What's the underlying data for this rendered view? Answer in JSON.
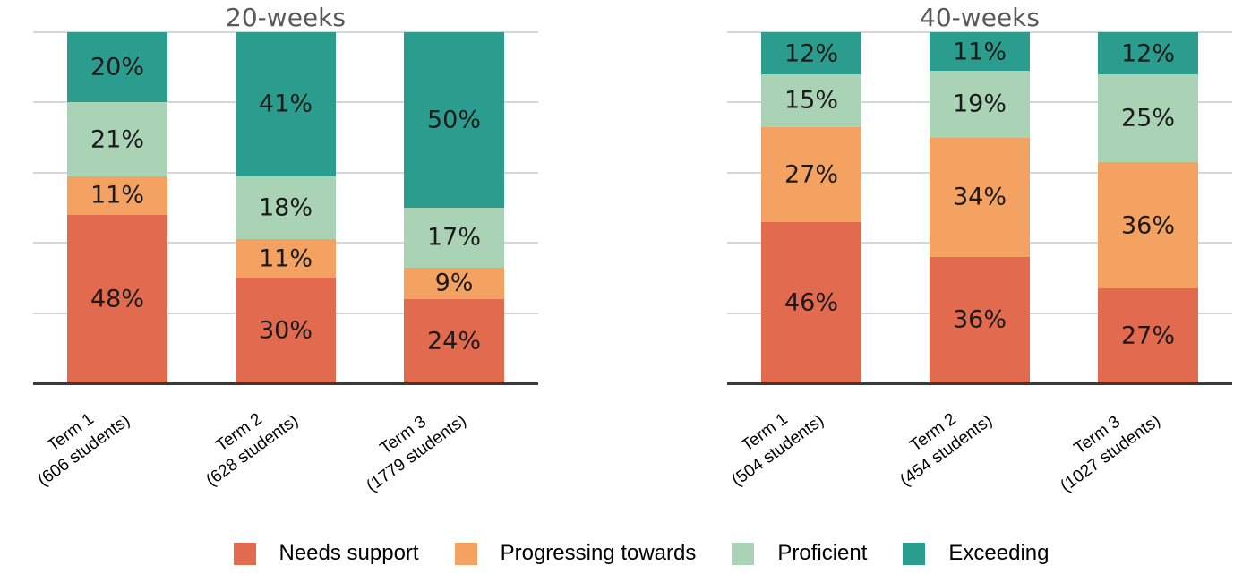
{
  "colors": {
    "needs_support": "#E26A4F",
    "progressing_towards": "#F3A262",
    "proficient": "#AAD3B5",
    "exceeding": "#2A9D8F",
    "gridline": "#D6D6D6",
    "axis": "#3A3A3A",
    "title_text": "#595959",
    "value_text": "#1A1A1A",
    "background": "#FFFFFF"
  },
  "legend": {
    "items": [
      {
        "label": "Needs support",
        "color_key": "needs_support"
      },
      {
        "label": "Progressing towards",
        "color_key": "progressing_towards"
      },
      {
        "label": "Proficient",
        "color_key": "proficient"
      },
      {
        "label": "Exceeding",
        "color_key": "exceeding"
      }
    ]
  },
  "chart_data": [
    {
      "type": "bar",
      "stacked": true,
      "title": "20-weeks",
      "value_suffix": "%",
      "ylim": [
        0,
        100
      ],
      "gridline_step": 20,
      "grid": true,
      "legend_position": "bottom",
      "categories": [
        [
          "Term 1",
          "(606 students)"
        ],
        [
          "Term 2",
          "(628 students)"
        ],
        [
          "Term 3",
          "(1779 students)"
        ]
      ],
      "series": [
        {
          "name": "Needs support",
          "color_key": "needs_support",
          "values": [
            48,
            30,
            24
          ]
        },
        {
          "name": "Progressing towards",
          "color_key": "progressing_towards",
          "values": [
            11,
            11,
            9
          ]
        },
        {
          "name": "Proficient",
          "color_key": "proficient",
          "values": [
            21,
            18,
            17
          ]
        },
        {
          "name": "Exceeding",
          "color_key": "exceeding",
          "values": [
            20,
            41,
            50
          ]
        }
      ]
    },
    {
      "type": "bar",
      "stacked": true,
      "title": "40-weeks",
      "value_suffix": "%",
      "ylim": [
        0,
        100
      ],
      "gridline_step": 20,
      "grid": true,
      "legend_position": "bottom",
      "categories": [
        [
          "Term 1",
          "(504 students)"
        ],
        [
          "Term 2",
          "(454 students)"
        ],
        [
          "Term 3",
          "(1027 students)"
        ]
      ],
      "series": [
        {
          "name": "Needs support",
          "color_key": "needs_support",
          "values": [
            46,
            36,
            27
          ]
        },
        {
          "name": "Progressing towards",
          "color_key": "progressing_towards",
          "values": [
            27,
            34,
            36
          ]
        },
        {
          "name": "Proficient",
          "color_key": "proficient",
          "values": [
            15,
            19,
            25
          ]
        },
        {
          "name": "Exceeding",
          "color_key": "exceeding",
          "values": [
            12,
            11,
            12
          ]
        }
      ]
    }
  ]
}
